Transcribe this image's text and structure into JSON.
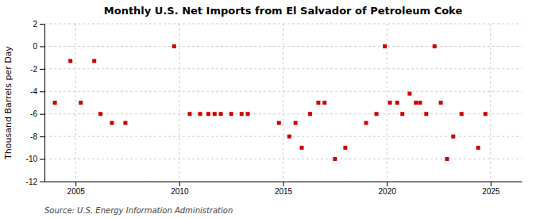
{
  "chart_data": {
    "type": "scatter",
    "title": "Monthly U.S. Net Imports from El Salvador of Petroleum Coke",
    "ylabel": "Thousand Barrels per Day",
    "source": "Source: U.S. Energy Information Administration",
    "color": "#cc0000",
    "marker": "square",
    "grid": true,
    "xlim": [
      2003.5,
      2026.5
    ],
    "xticks": [
      2005,
      2010,
      2015,
      2020,
      2025
    ],
    "ylim": [
      -12,
      2
    ],
    "yticks": [
      2,
      0,
      -2,
      -4,
      -6,
      -8,
      -10,
      -12
    ],
    "x": [
      2004.0,
      2004.75,
      2005.25,
      2005.9,
      2006.2,
      2006.75,
      2007.4,
      2009.75,
      2010.5,
      2011.0,
      2011.4,
      2011.7,
      2012.0,
      2012.5,
      2013.0,
      2013.3,
      2014.8,
      2015.3,
      2015.6,
      2015.9,
      2016.3,
      2016.7,
      2017.0,
      2017.5,
      2018.0,
      2019.0,
      2019.5,
      2019.9,
      2020.15,
      2020.5,
      2020.75,
      2021.1,
      2021.4,
      2021.6,
      2021.9,
      2022.3,
      2022.6,
      2022.9,
      2023.2,
      2023.6,
      2024.4,
      2024.75
    ],
    "values": [
      -5.0,
      -1.3,
      -5.0,
      -1.3,
      -6.0,
      -6.8,
      -6.8,
      0.0,
      -6.0,
      -6.0,
      -6.0,
      -6.0,
      -6.0,
      -6.0,
      -6.0,
      -6.0,
      -6.8,
      -8.0,
      -6.8,
      -9.0,
      -6.0,
      -5.0,
      -5.0,
      -10.0,
      -9.0,
      -6.8,
      -6.0,
      0.0,
      -5.0,
      -5.0,
      -6.0,
      -4.2,
      -5.0,
      -5.0,
      -6.0,
      0.0,
      -5.0,
      -10.0,
      -8.0,
      -6.0,
      -9.0,
      -6.0
    ]
  }
}
